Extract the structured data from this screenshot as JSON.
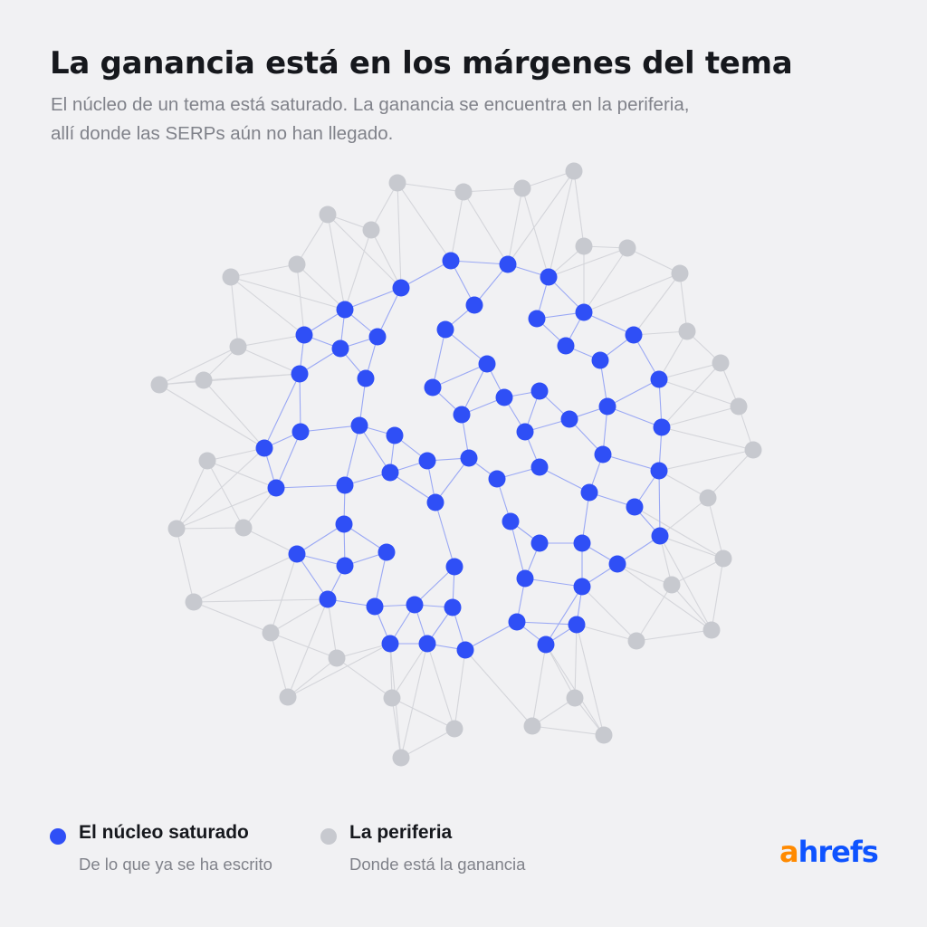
{
  "header": {
    "title": "La ganancia está en los márgenes del tema",
    "subtitle_line1": "El núcleo de un tema está saturado. La ganancia se encuentra en la periferia,",
    "subtitle_line2": "allí donde las SERPs aún no han llegado."
  },
  "colors": {
    "core": "#2f4ff6",
    "periphery": "#c7c9cf",
    "core_edge": "#9aa8f4",
    "periphery_edge": "#d4d5da",
    "logo_a": "#ff8a00",
    "logo_rest": "#0e53ff"
  },
  "legend": [
    {
      "label": "El núcleo saturado",
      "description": "De lo que ya se ha escrito",
      "color": "#2f4ff6"
    },
    {
      "label": "La periferia",
      "description": "Donde está la ganancia",
      "color": "#c7c9cf"
    }
  ],
  "brand": {
    "logo_a": "a",
    "logo_rest": "hrefs"
  }
}
